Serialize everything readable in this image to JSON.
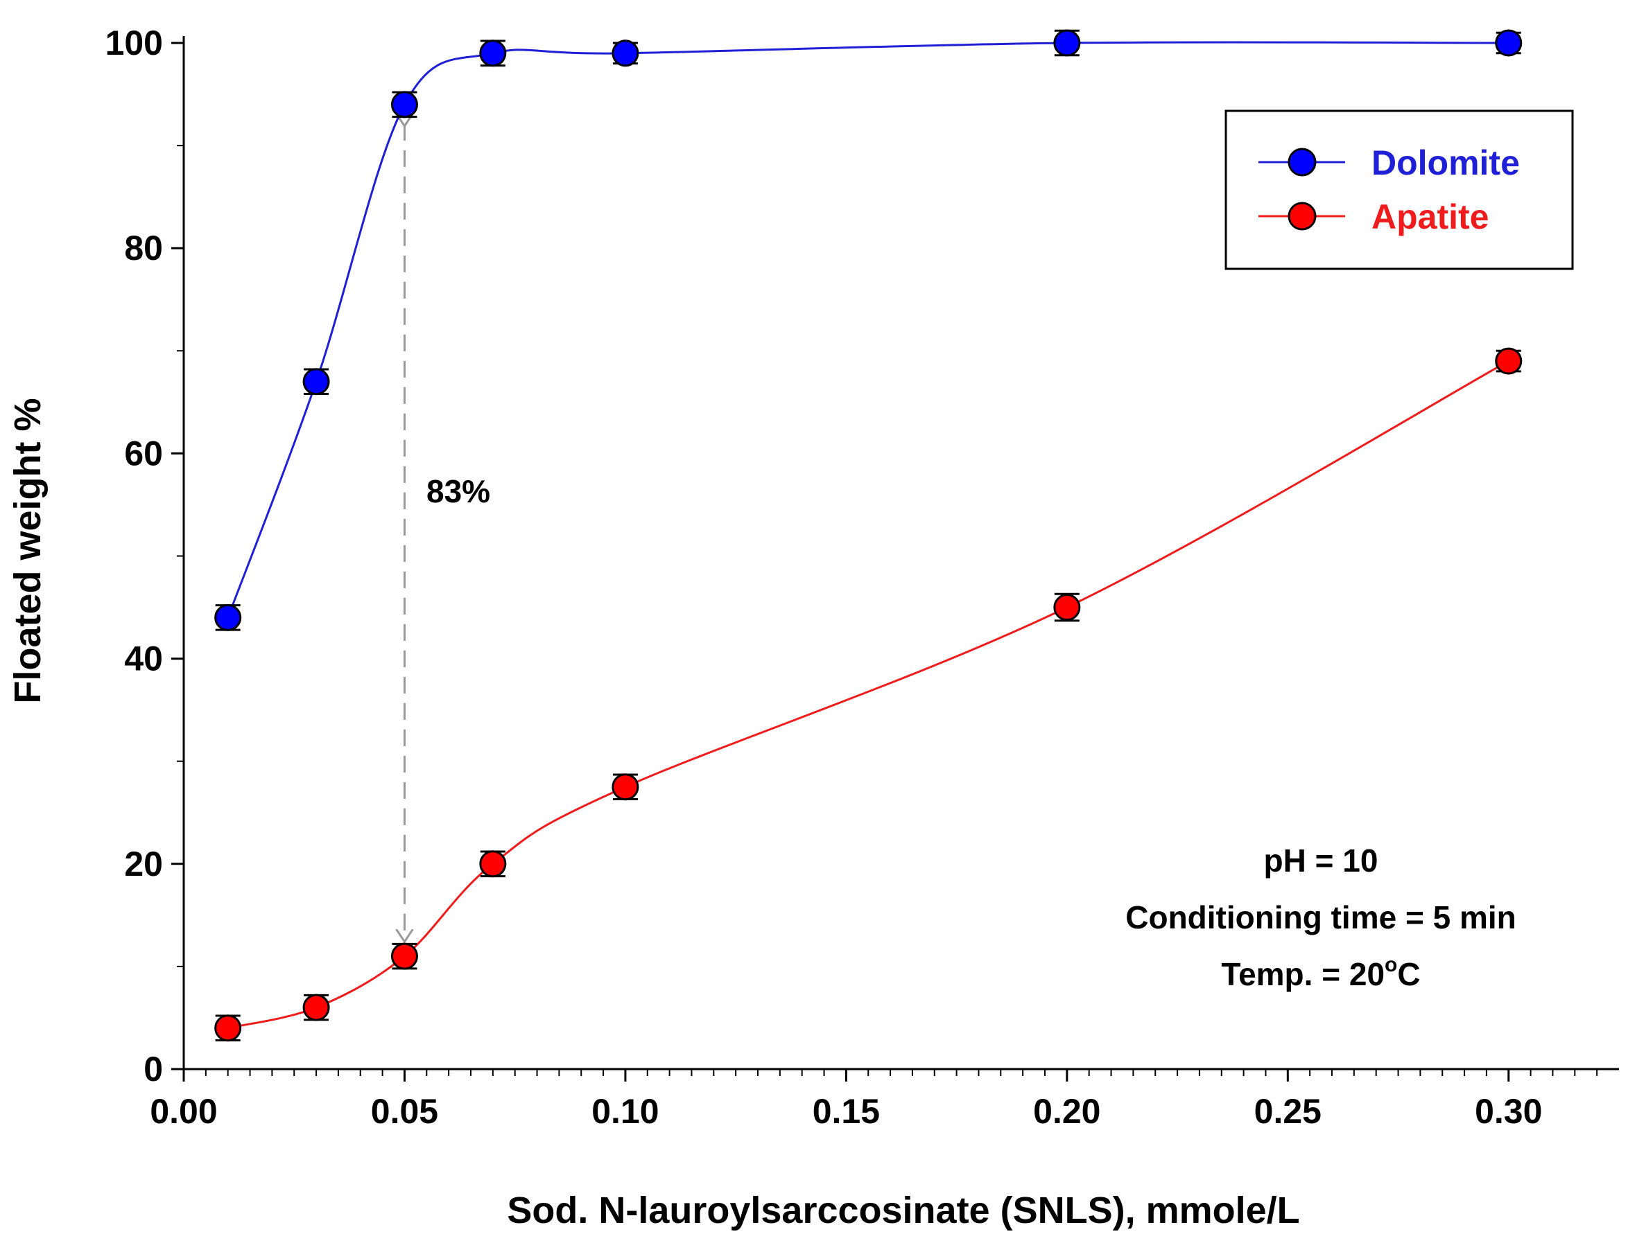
{
  "chart_data": {
    "type": "line",
    "title": "",
    "xlabel": "Sod. N-lauroylsarccosinate (SNLS), mmole/L",
    "ylabel": "Floated weight %",
    "xlim": [
      0.0,
      0.325
    ],
    "ylim": [
      0,
      100
    ],
    "xticks": [
      0.0,
      0.05,
      0.1,
      0.15,
      0.2,
      0.25,
      0.3
    ],
    "xtick_labels": [
      "0.00",
      "0.05",
      "0.10",
      "0.15",
      "0.20",
      "0.25",
      "0.30"
    ],
    "yticks": [
      0,
      20,
      40,
      60,
      80,
      100
    ],
    "ytick_labels": [
      "0",
      "20",
      "40",
      "60",
      "80",
      "100"
    ],
    "grid": false,
    "legend_position": "top-right",
    "series": [
      {
        "name": "Dolomite",
        "color": "#1f1fd6",
        "marker_color": "#0000ff",
        "x": [
          0.01,
          0.03,
          0.05,
          0.07,
          0.1,
          0.2,
          0.3
        ],
        "y": [
          44,
          67,
          94,
          99,
          99,
          100,
          100
        ],
        "error": [
          1.2,
          1.2,
          1.2,
          1.2,
          1.0,
          1.2,
          1.0
        ]
      },
      {
        "name": "Apatite",
        "color": "#ee1c1c",
        "marker_color": "#ff0000",
        "x": [
          0.01,
          0.03,
          0.05,
          0.07,
          0.1,
          0.2,
          0.3
        ],
        "y": [
          4,
          6,
          11,
          20,
          27.5,
          45,
          69
        ],
        "error": [
          1.2,
          1.2,
          1.2,
          1.2,
          1.2,
          1.3,
          1.0
        ]
      }
    ],
    "annotations": {
      "gap_label": "83%",
      "gap_x": 0.05,
      "gap_from": 94,
      "gap_to": 11,
      "conditions": [
        "pH = 10",
        "Conditioning time = 5 min"
      ],
      "temp_prefix": "Temp. = 20",
      "temp_superscript": "o",
      "temp_suffix": "C"
    }
  }
}
